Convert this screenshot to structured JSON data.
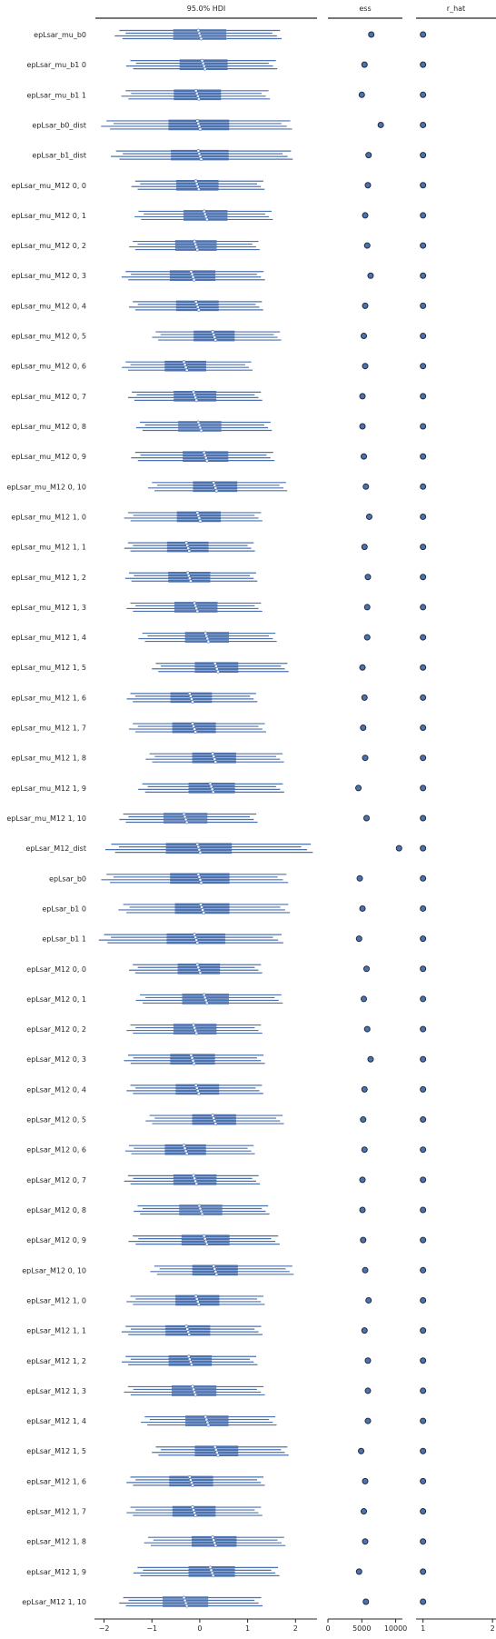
{
  "chart_data": {
    "type": "forest",
    "panels": [
      {
        "id": "hdi",
        "title": "95.0% HDI",
        "xlim": [
          -2.2,
          2.45
        ],
        "ticks": [
          -2,
          -1,
          0,
          1,
          2
        ],
        "tick_labels": [
          "−2",
          "−1",
          "0",
          "1",
          "2"
        ]
      },
      {
        "id": "ess",
        "title": "ess",
        "xlim": [
          0,
          11000
        ],
        "ticks": [
          0,
          5000,
          10000
        ],
        "tick_labels": [
          "0",
          "5000",
          "10000"
        ]
      },
      {
        "id": "r_hat",
        "title": "r_hat",
        "xlim": [
          0.9,
          2.05
        ],
        "ticks": [
          1,
          2
        ],
        "tick_labels": [
          "1",
          "2"
        ]
      }
    ],
    "colors": {
      "hdi": "#4c72b0",
      "point_fill": "#eef1f7",
      "marker_fill": "#4c72b0",
      "marker_edge": "#1f2b3f",
      "axis": "#262626"
    },
    "rows": [
      {
        "label": "epLsar_mu_b0",
        "median": 0.0,
        "hdi_low": -1.68,
        "hdi_high": 1.58,
        "ess": 6400,
        "r_hat": 1.0
      },
      {
        "label": "epLsar_mu_b1 0",
        "median": 0.08,
        "hdi_low": -1.45,
        "hdi_high": 1.5,
        "ess": 5400,
        "r_hat": 1.0
      },
      {
        "label": "epLsar_mu_b1 1",
        "median": -0.05,
        "hdi_low": -1.55,
        "hdi_high": 1.35,
        "ess": 5000,
        "r_hat": 1.0
      },
      {
        "label": "epLsar_b0_dist",
        "median": -0.02,
        "hdi_low": -1.95,
        "hdi_high": 1.78,
        "ess": 7800,
        "r_hat": 1.0
      },
      {
        "label": "epLsar_b1_dist",
        "median": 0.0,
        "hdi_low": -1.75,
        "hdi_high": 1.8,
        "ess": 6000,
        "r_hat": 1.0
      },
      {
        "label": "epLsar_mu_M12 0, 0",
        "median": -0.05,
        "hdi_low": -1.35,
        "hdi_high": 1.25,
        "ess": 5900,
        "r_hat": 1.0
      },
      {
        "label": "epLsar_mu_M12 0, 1",
        "median": 0.12,
        "hdi_low": -1.28,
        "hdi_high": 1.42,
        "ess": 5500,
        "r_hat": 1.0
      },
      {
        "label": "epLsar_mu_M12 0, 2",
        "median": -0.08,
        "hdi_low": -1.4,
        "hdi_high": 1.15,
        "ess": 5800,
        "r_hat": 1.0
      },
      {
        "label": "epLsar_mu_M12 0, 3",
        "median": -0.15,
        "hdi_low": -1.55,
        "hdi_high": 1.25,
        "ess": 6300,
        "r_hat": 1.0
      },
      {
        "label": "epLsar_mu_M12 0, 4",
        "median": -0.05,
        "hdi_low": -1.4,
        "hdi_high": 1.22,
        "ess": 5500,
        "r_hat": 1.0
      },
      {
        "label": "epLsar_mu_M12 0, 5",
        "median": 0.3,
        "hdi_low": -0.92,
        "hdi_high": 1.6,
        "ess": 5300,
        "r_hat": 1.0
      },
      {
        "label": "epLsar_mu_M12 0, 6",
        "median": -0.3,
        "hdi_low": -1.55,
        "hdi_high": 1.0,
        "ess": 5500,
        "r_hat": 1.0
      },
      {
        "label": "epLsar_mu_M12 0, 7",
        "median": -0.1,
        "hdi_low": -1.42,
        "hdi_high": 1.2,
        "ess": 5100,
        "r_hat": 1.0
      },
      {
        "label": "epLsar_mu_M12 0, 8",
        "median": 0.0,
        "hdi_low": -1.25,
        "hdi_high": 1.4,
        "ess": 5100,
        "r_hat": 1.0
      },
      {
        "label": "epLsar_mu_M12 0, 9",
        "median": 0.12,
        "hdi_low": -1.35,
        "hdi_high": 1.45,
        "ess": 5300,
        "r_hat": 1.0
      },
      {
        "label": "epLsar_mu_M12 0, 10",
        "median": 0.32,
        "hdi_low": -1.0,
        "hdi_high": 1.72,
        "ess": 5600,
        "r_hat": 1.0
      },
      {
        "label": "epLsar_mu_M12 1, 0",
        "median": -0.02,
        "hdi_low": -1.5,
        "hdi_high": 1.2,
        "ess": 6100,
        "r_hat": 1.0
      },
      {
        "label": "epLsar_mu_M12 1, 1",
        "median": -0.25,
        "hdi_low": -1.5,
        "hdi_high": 1.05,
        "ess": 5400,
        "r_hat": 1.0
      },
      {
        "label": "epLsar_mu_M12 1, 2",
        "median": -0.22,
        "hdi_low": -1.48,
        "hdi_high": 1.1,
        "ess": 5900,
        "r_hat": 1.0
      },
      {
        "label": "epLsar_mu_M12 1, 3",
        "median": -0.08,
        "hdi_low": -1.45,
        "hdi_high": 1.2,
        "ess": 5800,
        "r_hat": 1.0
      },
      {
        "label": "epLsar_mu_M12 1, 4",
        "median": 0.15,
        "hdi_low": -1.2,
        "hdi_high": 1.5,
        "ess": 5800,
        "r_hat": 1.0
      },
      {
        "label": "epLsar_mu_M12 1, 5",
        "median": 0.35,
        "hdi_low": -0.92,
        "hdi_high": 1.75,
        "ess": 5100,
        "r_hat": 1.0
      },
      {
        "label": "epLsar_mu_M12 1, 6",
        "median": -0.18,
        "hdi_low": -1.45,
        "hdi_high": 1.1,
        "ess": 5400,
        "r_hat": 1.0
      },
      {
        "label": "epLsar_mu_M12 1, 7",
        "median": -0.12,
        "hdi_low": -1.4,
        "hdi_high": 1.28,
        "ess": 5200,
        "r_hat": 1.0
      },
      {
        "label": "epLsar_mu_M12 1, 8",
        "median": 0.3,
        "hdi_low": -1.05,
        "hdi_high": 1.65,
        "ess": 5500,
        "r_hat": 1.0
      },
      {
        "label": "epLsar_mu_M12 1, 9",
        "median": 0.25,
        "hdi_low": -1.2,
        "hdi_high": 1.65,
        "ess": 4500,
        "r_hat": 1.0
      },
      {
        "label": "epLsar_mu_M12 1, 10",
        "median": -0.3,
        "hdi_low": -1.6,
        "hdi_high": 1.1,
        "ess": 5700,
        "r_hat": 1.0
      },
      {
        "label": "epLsar_M12_dist",
        "median": -0.02,
        "hdi_low": -1.85,
        "hdi_high": 2.2,
        "ess": 10500,
        "r_hat": 1.0
      },
      {
        "label": "epLsar_b0",
        "median": 0.0,
        "hdi_low": -1.95,
        "hdi_high": 1.7,
        "ess": 4700,
        "r_hat": 1.0
      },
      {
        "label": "epLsar_b1 0",
        "median": 0.05,
        "hdi_low": -1.6,
        "hdi_high": 1.75,
        "ess": 5100,
        "r_hat": 1.0
      },
      {
        "label": "epLsar_b1 1",
        "median": -0.08,
        "hdi_low": -2.0,
        "hdi_high": 1.6,
        "ess": 4600,
        "r_hat": 1.0
      },
      {
        "label": "epLsar_M12 0, 0",
        "median": -0.02,
        "hdi_low": -1.4,
        "hdi_high": 1.2,
        "ess": 5700,
        "r_hat": 1.0
      },
      {
        "label": "epLsar_M12 0, 1",
        "median": 0.12,
        "hdi_low": -1.25,
        "hdi_high": 1.62,
        "ess": 5300,
        "r_hat": 1.0
      },
      {
        "label": "epLsar_M12 0, 2",
        "median": -0.1,
        "hdi_low": -1.45,
        "hdi_high": 1.2,
        "ess": 5800,
        "r_hat": 1.0
      },
      {
        "label": "epLsar_M12 0, 3",
        "median": -0.15,
        "hdi_low": -1.5,
        "hdi_high": 1.25,
        "ess": 6300,
        "r_hat": 1.0
      },
      {
        "label": "epLsar_M12 0, 4",
        "median": -0.05,
        "hdi_low": -1.45,
        "hdi_high": 1.22,
        "ess": 5400,
        "r_hat": 1.0
      },
      {
        "label": "epLsar_M12 0, 5",
        "median": 0.3,
        "hdi_low": -1.05,
        "hdi_high": 1.65,
        "ess": 5200,
        "r_hat": 1.0
      },
      {
        "label": "epLsar_M12 0, 6",
        "median": -0.3,
        "hdi_low": -1.48,
        "hdi_high": 1.05,
        "ess": 5400,
        "r_hat": 1.0
      },
      {
        "label": "epLsar_M12 0, 7",
        "median": -0.1,
        "hdi_low": -1.5,
        "hdi_high": 1.15,
        "ess": 5100,
        "r_hat": 1.0
      },
      {
        "label": "epLsar_M12 0, 8",
        "median": 0.02,
        "hdi_low": -1.3,
        "hdi_high": 1.35,
        "ess": 5100,
        "r_hat": 1.0
      },
      {
        "label": "epLsar_M12 0, 9",
        "median": 0.12,
        "hdi_low": -1.4,
        "hdi_high": 1.55,
        "ess": 5200,
        "r_hat": 1.0
      },
      {
        "label": "epLsar_M12 0, 10",
        "median": 0.32,
        "hdi_low": -0.95,
        "hdi_high": 1.85,
        "ess": 5500,
        "r_hat": 1.0
      },
      {
        "label": "epLsar_M12 1, 0",
        "median": -0.05,
        "hdi_low": -1.45,
        "hdi_high": 1.25,
        "ess": 6000,
        "r_hat": 1.0
      },
      {
        "label": "epLsar_M12 1, 1",
        "median": -0.25,
        "hdi_low": -1.55,
        "hdi_high": 1.2,
        "ess": 5400,
        "r_hat": 1.0
      },
      {
        "label": "epLsar_M12 1, 2",
        "median": -0.2,
        "hdi_low": -1.55,
        "hdi_high": 1.1,
        "ess": 5900,
        "r_hat": 1.0
      },
      {
        "label": "epLsar_M12 1, 3",
        "median": -0.12,
        "hdi_low": -1.5,
        "hdi_high": 1.25,
        "ess": 5900,
        "r_hat": 1.0
      },
      {
        "label": "epLsar_M12 1, 4",
        "median": 0.15,
        "hdi_low": -1.15,
        "hdi_high": 1.5,
        "ess": 5900,
        "r_hat": 1.0
      },
      {
        "label": "epLsar_M12 1, 5",
        "median": 0.35,
        "hdi_low": -0.92,
        "hdi_high": 1.75,
        "ess": 4900,
        "r_hat": 1.0
      },
      {
        "label": "epLsar_M12 1, 6",
        "median": -0.18,
        "hdi_low": -1.45,
        "hdi_high": 1.25,
        "ess": 5500,
        "r_hat": 1.0
      },
      {
        "label": "epLsar_M12 1, 7",
        "median": -0.12,
        "hdi_low": -1.45,
        "hdi_high": 1.2,
        "ess": 5300,
        "r_hat": 1.0
      },
      {
        "label": "epLsar_M12 1, 8",
        "median": 0.3,
        "hdi_low": -1.08,
        "hdi_high": 1.68,
        "ess": 5500,
        "r_hat": 1.0
      },
      {
        "label": "epLsar_M12 1, 9",
        "median": 0.25,
        "hdi_low": -1.3,
        "hdi_high": 1.55,
        "ess": 4600,
        "r_hat": 1.0
      },
      {
        "label": "epLsar_M12 1, 10",
        "median": -0.3,
        "hdi_low": -1.6,
        "hdi_high": 1.2,
        "ess": 5600,
        "r_hat": 1.0
      }
    ]
  }
}
